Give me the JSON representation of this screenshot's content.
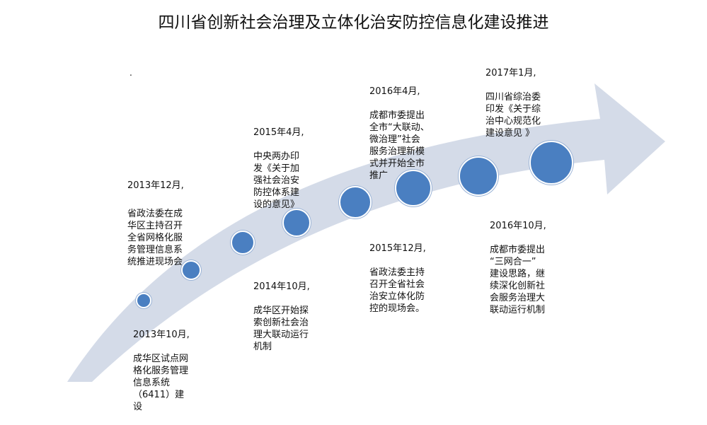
{
  "title": "四川省创新社会治理及立体化治安防控信息化建设推进",
  "stray_mark": ".",
  "colors": {
    "arrow_fill": "#d4dbe8",
    "dot_fill": "#4a7fc1",
    "text": "#111111"
  },
  "events": [
    {
      "date": "2013年10月,",
      "text": "成华区试点网\n格化服务管理\n信息系统\n（6411）建\n设"
    },
    {
      "date": "2013年12月,",
      "text": "省政法委在成\n华区主持召开\n全省网格化服\n务管理信息系\n统推进现场会"
    },
    {
      "date": "2014年10月,",
      "text": "成华区开始探\n索创新社会治\n理大联动运行\n机制"
    },
    {
      "date": "2015年4月,",
      "text": "中央两办印\n发《关于加\n强社会治安\n防控体系建\n设的意见》"
    },
    {
      "date": "2015年12月,",
      "text": "省政法委主持\n召开全省社会\n治安立体化防\n控的现场会。"
    },
    {
      "date": "2016年4月,",
      "text": "成都市委提出\n全市“大联动、\n微治理”社会\n服务治理新模\n式并开始全市\n推广"
    },
    {
      "date": "2016年10月,",
      "text": "成都市委提出\n“三网合一”\n建设思路，继\n续深化创新社\n会服务治理大\n联动运行机制"
    },
    {
      "date": "2017年1月,",
      "text": "四川省综治委\n印发《关于综\n治中心规范化\n建设意见 》"
    }
  ]
}
